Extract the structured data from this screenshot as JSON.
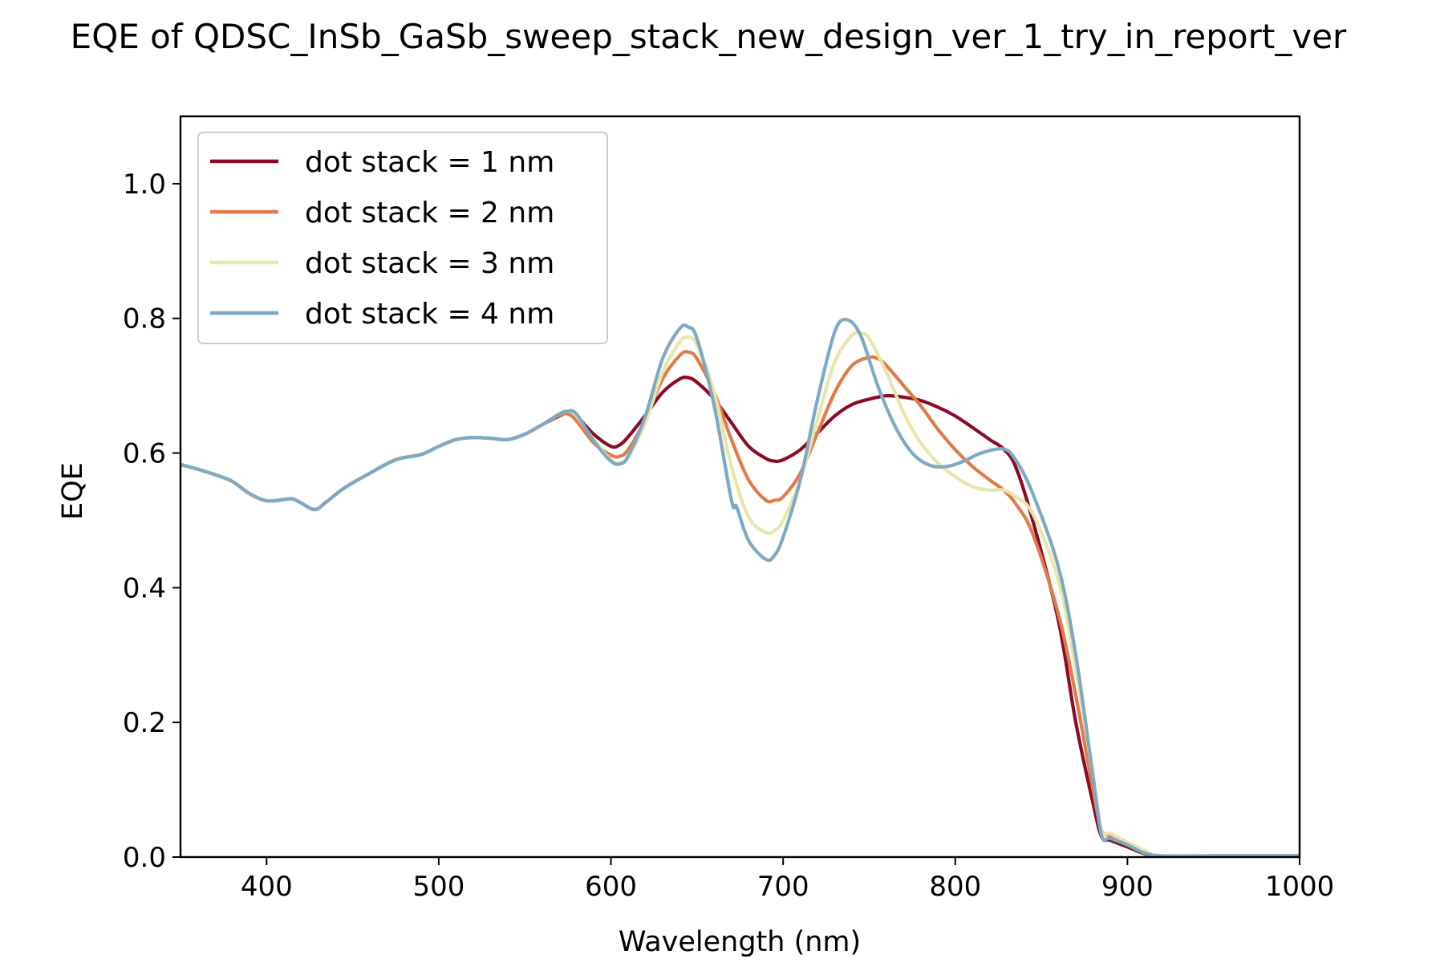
{
  "chart_data": {
    "type": "line",
    "title": "EQE of  QDSC_InSb_GaSb_sweep_stack_new_design_ver_1_try_in_report_ver",
    "xlabel": "Wavelength (nm)",
    "ylabel": "EQE",
    "xlim": [
      350,
      1000
    ],
    "ylim": [
      0,
      1.1
    ],
    "xticks": [
      "400",
      "500",
      "600",
      "700",
      "800",
      "900",
      "1000"
    ],
    "xtick_values": [
      400,
      500,
      600,
      700,
      800,
      900,
      1000
    ],
    "yticks": [
      "0.0",
      "0.2",
      "0.4",
      "0.6",
      "0.8",
      "1.0"
    ],
    "ytick_values": [
      0.0,
      0.2,
      0.4,
      0.6,
      0.8,
      1.0
    ],
    "grid": false,
    "legend_position": "top-left",
    "series": [
      {
        "name": "dot stack = 1 nm",
        "color": "#8b0a26",
        "x": [
          350,
          360,
          370,
          380,
          390,
          400,
          410,
          415,
          420,
          428,
          435,
          445,
          460,
          475,
          490,
          500,
          510,
          520,
          530,
          540,
          550,
          560,
          570,
          575,
          580,
          590,
          600,
          605,
          610,
          620,
          630,
          640,
          645,
          650,
          660,
          670,
          680,
          690,
          695,
          700,
          710,
          720,
          730,
          740,
          750,
          760,
          770,
          780,
          790,
          800,
          810,
          820,
          828,
          835,
          845,
          860,
          870,
          880,
          885,
          890,
          900,
          910,
          920,
          950,
          1000
        ],
        "y": [
          0.583,
          0.576,
          0.568,
          0.558,
          0.54,
          0.529,
          0.531,
          0.532,
          0.526,
          0.516,
          0.528,
          0.548,
          0.57,
          0.59,
          0.598,
          0.61,
          0.62,
          0.623,
          0.622,
          0.62,
          0.628,
          0.642,
          0.655,
          0.66,
          0.655,
          0.628,
          0.61,
          0.612,
          0.624,
          0.656,
          0.69,
          0.71,
          0.712,
          0.705,
          0.68,
          0.645,
          0.61,
          0.592,
          0.588,
          0.59,
          0.605,
          0.63,
          0.655,
          0.672,
          0.68,
          0.685,
          0.683,
          0.678,
          0.668,
          0.655,
          0.638,
          0.62,
          0.606,
          0.58,
          0.5,
          0.35,
          0.2,
          0.08,
          0.03,
          0.025,
          0.015,
          0.005,
          0.0,
          0.0,
          0.0
        ]
      },
      {
        "name": "dot stack = 2 nm",
        "color": "#e07b4a",
        "x": [
          350,
          360,
          370,
          380,
          390,
          400,
          410,
          415,
          420,
          428,
          435,
          445,
          460,
          475,
          490,
          500,
          510,
          520,
          530,
          540,
          550,
          560,
          570,
          575,
          580,
          590,
          600,
          605,
          610,
          620,
          630,
          640,
          645,
          650,
          660,
          670,
          680,
          690,
          695,
          700,
          710,
          720,
          730,
          740,
          750,
          755,
          760,
          770,
          780,
          790,
          800,
          810,
          820,
          828,
          835,
          845,
          860,
          870,
          880,
          885,
          890,
          900,
          910,
          920,
          950,
          1000
        ],
        "y": [
          0.583,
          0.576,
          0.568,
          0.558,
          0.54,
          0.529,
          0.531,
          0.532,
          0.526,
          0.516,
          0.528,
          0.548,
          0.57,
          0.59,
          0.598,
          0.61,
          0.62,
          0.623,
          0.622,
          0.62,
          0.628,
          0.642,
          0.656,
          0.658,
          0.648,
          0.615,
          0.597,
          0.595,
          0.605,
          0.65,
          0.71,
          0.745,
          0.75,
          0.74,
          0.69,
          0.62,
          0.56,
          0.53,
          0.53,
          0.535,
          0.57,
          0.63,
          0.69,
          0.73,
          0.742,
          0.74,
          0.73,
          0.7,
          0.67,
          0.635,
          0.605,
          0.58,
          0.56,
          0.545,
          0.525,
          0.48,
          0.36,
          0.24,
          0.1,
          0.04,
          0.032,
          0.02,
          0.008,
          0.0,
          0.0,
          0.0
        ]
      },
      {
        "name": "dot stack = 3 nm",
        "color": "#e8e6a8",
        "x": [
          350,
          360,
          370,
          380,
          390,
          400,
          410,
          415,
          420,
          428,
          435,
          445,
          460,
          475,
          490,
          500,
          510,
          520,
          530,
          540,
          550,
          560,
          570,
          575,
          580,
          590,
          600,
          605,
          610,
          620,
          630,
          640,
          645,
          650,
          660,
          670,
          680,
          690,
          695,
          700,
          710,
          720,
          730,
          740,
          745,
          750,
          760,
          770,
          780,
          790,
          800,
          810,
          820,
          828,
          835,
          845,
          860,
          870,
          880,
          885,
          890,
          900,
          910,
          920,
          950,
          1000
        ],
        "y": [
          0.583,
          0.576,
          0.568,
          0.558,
          0.54,
          0.529,
          0.531,
          0.532,
          0.526,
          0.516,
          0.528,
          0.548,
          0.57,
          0.59,
          0.598,
          0.61,
          0.62,
          0.623,
          0.622,
          0.62,
          0.628,
          0.642,
          0.658,
          0.662,
          0.655,
          0.62,
          0.59,
          0.585,
          0.595,
          0.645,
          0.72,
          0.765,
          0.772,
          0.76,
          0.69,
          0.58,
          0.505,
          0.482,
          0.485,
          0.5,
          0.56,
          0.65,
          0.735,
          0.775,
          0.778,
          0.77,
          0.72,
          0.66,
          0.615,
          0.585,
          0.565,
          0.55,
          0.545,
          0.545,
          0.535,
          0.51,
          0.41,
          0.28,
          0.12,
          0.04,
          0.035,
          0.022,
          0.01,
          0.0,
          0.0,
          0.0
        ]
      },
      {
        "name": "dot stack = 4 nm",
        "color": "#7ea9c4",
        "x": [
          350,
          360,
          370,
          380,
          390,
          400,
          410,
          415,
          420,
          428,
          435,
          445,
          460,
          475,
          490,
          500,
          510,
          520,
          530,
          540,
          550,
          560,
          570,
          575,
          580,
          590,
          600,
          605,
          610,
          620,
          630,
          640,
          645,
          650,
          660,
          670,
          673,
          680,
          690,
          695,
          700,
          710,
          720,
          730,
          737,
          745,
          755,
          765,
          775,
          785,
          795,
          805,
          815,
          828,
          835,
          845,
          860,
          870,
          880,
          885,
          890,
          900,
          910,
          920,
          950,
          1000
        ],
        "y": [
          0.583,
          0.576,
          0.568,
          0.558,
          0.54,
          0.529,
          0.531,
          0.532,
          0.526,
          0.516,
          0.528,
          0.548,
          0.57,
          0.59,
          0.598,
          0.61,
          0.62,
          0.623,
          0.622,
          0.62,
          0.628,
          0.642,
          0.658,
          0.662,
          0.658,
          0.618,
          0.588,
          0.584,
          0.595,
          0.655,
          0.74,
          0.785,
          0.787,
          0.77,
          0.67,
          0.53,
          0.52,
          0.47,
          0.442,
          0.448,
          0.475,
          0.56,
          0.68,
          0.78,
          0.798,
          0.775,
          0.7,
          0.64,
          0.6,
          0.582,
          0.58,
          0.588,
          0.6,
          0.606,
          0.59,
          0.54,
          0.43,
          0.3,
          0.12,
          0.032,
          0.028,
          0.018,
          0.006,
          0.002,
          0.002,
          0.002
        ]
      }
    ]
  }
}
